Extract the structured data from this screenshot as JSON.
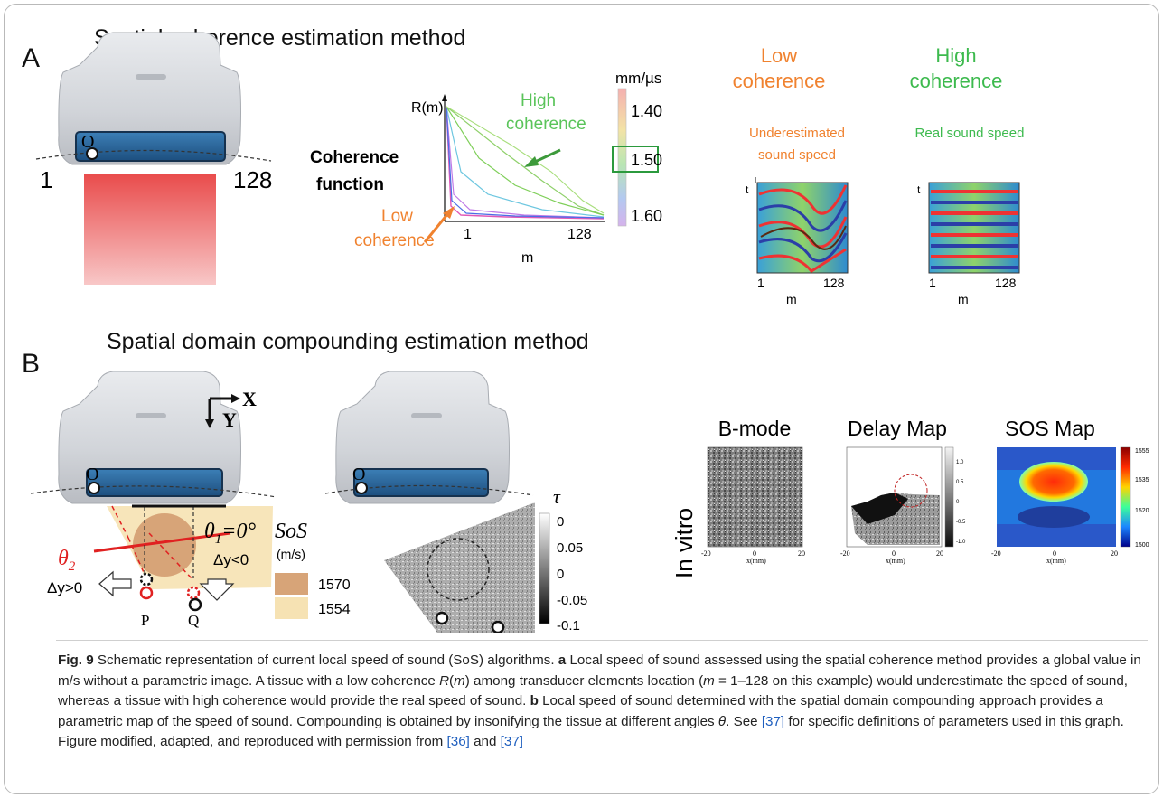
{
  "panelA": {
    "letter": "A",
    "title": "Spatial coherence estimation method",
    "probe_label": "O",
    "element_first": "1",
    "element_last": "128",
    "coherence_function_label_1": "Coherence",
    "coherence_function_label_2": "function",
    "graph_ylabel": "R(m)",
    "graph_xtick_first": "1",
    "graph_xtick_last": "128",
    "graph_xlabel": "m",
    "high_coherence_1": "High",
    "high_coherence_2": "coherence",
    "low_coherence_1": "Low",
    "low_coherence_2": "coherence",
    "scale_unit": "mm/µs",
    "scale_ticks": [
      "1.40",
      "1.50",
      "1.60"
    ],
    "low_heading_1": "Low",
    "low_heading_2": "coherence",
    "high_heading_1": "High",
    "high_heading_2": "coherence",
    "under_label_1": "Underestimated",
    "under_label_2": "sound speed",
    "real_label": "Real sound speed",
    "map_t": "t",
    "map_x_first": "1",
    "map_x_last": "128",
    "map_x_label": "m",
    "colors": {
      "low": "#f0822f",
      "high": "#3dba4e"
    }
  },
  "panelB": {
    "letter": "B",
    "title": "Spatial domain compounding estimation method",
    "probe_label": "O",
    "axis_x": "X",
    "axis_y": "Y",
    "theta1": "θ",
    "theta1_sub": "1",
    "theta1_val": "=0°",
    "theta2": "θ",
    "theta2_sub": "2",
    "dy_pos": "Δy>0",
    "dy_neg": "Δy<0",
    "point_p": "P",
    "point_q": "Q",
    "sos_label": "SoS",
    "sos_unit": "(m/s)",
    "sos_values": [
      "1570",
      "1554"
    ],
    "tau_label": "τ",
    "tau_ticks": [
      "0",
      "0.05",
      "0",
      "-0.05",
      "-0.1"
    ],
    "in_vitro": "In vitro",
    "bmode_title": "B-mode",
    "delay_title": "Delay Map",
    "sos_title": "SOS Map",
    "xtick_left": "-20",
    "xtick_mid": "0",
    "xtick_right": "20",
    "xaxis_unit": "x(mm)",
    "delay_scale": [
      "1.0",
      "0.5",
      "0",
      "-0.5",
      "-1.0"
    ],
    "sos_scale": [
      "1555",
      "1535",
      "1520",
      "1500"
    ]
  },
  "caption": {
    "fig_label": "Fig. 9",
    "t1": "  Schematic representation of current local speed of sound (SoS) algorithms. ",
    "a_label": "a",
    "t2": " Local speed of sound assessed using the spatial coherence method provides a global value in m/s without a parametric image. A tissue with a low coherence ",
    "rm": "R",
    "t2b": "(",
    "m1": "m",
    "t2c": ") among transducer elements location (",
    "m2": "m",
    "t3": " = 1–128 on this example) would underestimate the speed of sound, whereas a tissue with high coherence would provide the real speed of sound. ",
    "b_label": "b",
    "t4": " Local speed of sound determined with the spatial domain compounding approach provides a parametric map of the speed of sound. Compounding is obtained by insonifying the tissue at different angles ",
    "theta": "θ",
    "t5": ". See ",
    "ref37a": "[37]",
    "t6": " for specific definitions of parameters used in this graph. Figure modified, adapted, and reproduced with permission from ",
    "ref36": "[36]",
    "t7": " and ",
    "ref37b": "[37]"
  }
}
